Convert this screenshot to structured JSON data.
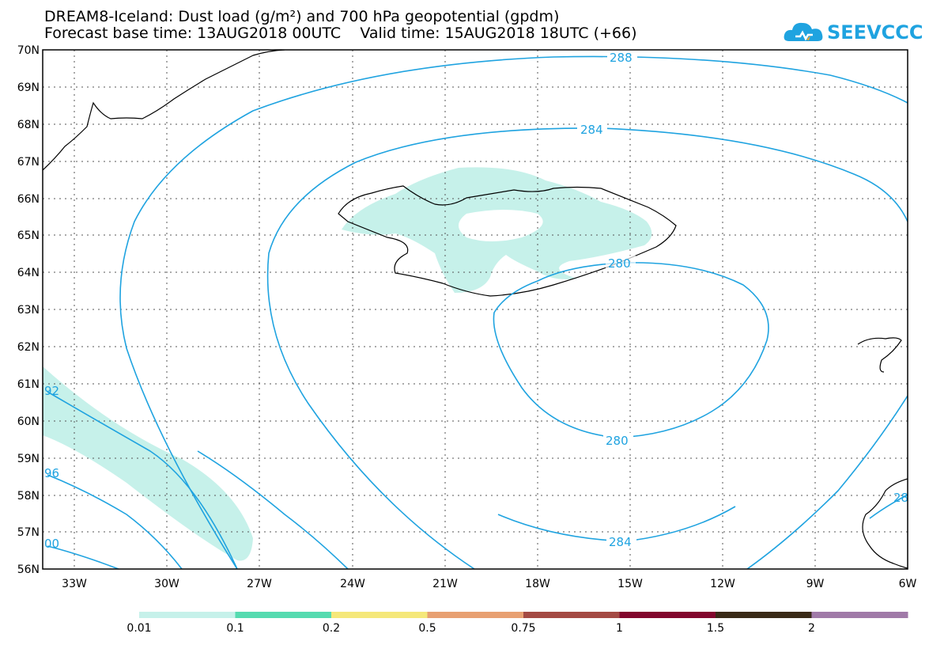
{
  "title": {
    "line1": "DREAM8-Iceland: Dust load (g/m²) and 700 hPa geopotential (gpdm)",
    "line2": "Forecast base time: 13AUG2018 00UTC    Valid time: 15AUG2018 18UTC (+66)"
  },
  "logo": {
    "text": "SEEVCCC",
    "icon": "cloud-icon",
    "color": "#1fa3e0"
  },
  "axes": {
    "latitudes": [
      "70N",
      "69N",
      "68N",
      "67N",
      "66N",
      "65N",
      "64N",
      "63N",
      "62N",
      "61N",
      "60N",
      "59N",
      "58N",
      "57N",
      "56N"
    ],
    "longitudes": [
      "33W",
      "30W",
      "27W",
      "24W",
      "21W",
      "18W",
      "15W",
      "12W",
      "9W",
      "6W"
    ]
  },
  "contours": {
    "color": "#1fa3e0",
    "labels": [
      "288",
      "284",
      "280",
      "280",
      "284",
      "92",
      "96",
      "00",
      "28"
    ]
  },
  "dust_color": "#c6f1ea",
  "legend": {
    "labels": [
      "0.01",
      "0.1",
      "0.2",
      "0.5",
      "0.75",
      "1",
      "1.5",
      "2"
    ],
    "colors": [
      "#c6f1ea",
      "#56dbb0",
      "#f5e87a",
      "#e8a072",
      "#a44a44",
      "#82072d",
      "#3a2a17",
      "#a07aa8"
    ]
  }
}
